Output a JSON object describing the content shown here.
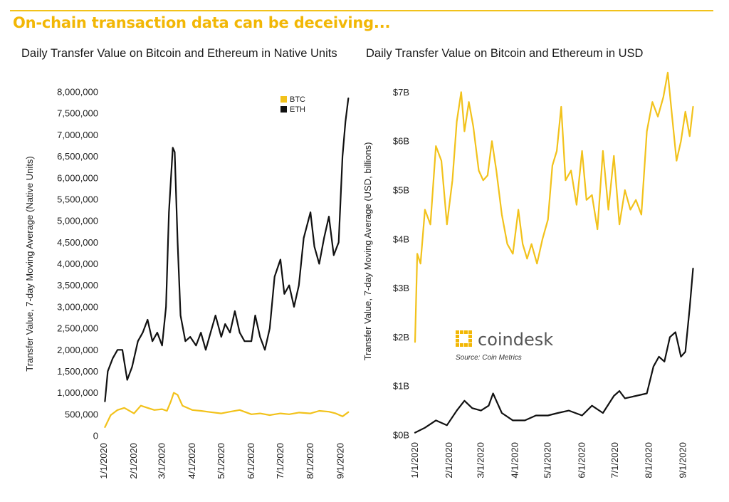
{
  "headline": "On-chain transaction data can be deceiving...",
  "colors": {
    "btc": "#f2c21b",
    "eth": "#111111",
    "accent": "#f2b705"
  },
  "branding": {
    "logo_text": "coindesk",
    "source": "Source: Coin Metrics",
    "logo_icon": "coindesk-logo-icon"
  },
  "chart_data": [
    {
      "type": "line",
      "title": "Daily Transfer Value on Bitcoin and Ethereum in Native Units",
      "ylabel": "Transfer Value, 7-day Moving Average (Native Units)",
      "xlabel": "",
      "ylim": [
        0,
        8000000
      ],
      "yticks": [
        0,
        500000,
        1000000,
        1500000,
        2000000,
        2500000,
        3000000,
        3500000,
        4000000,
        4500000,
        5000000,
        5500000,
        6000000,
        6500000,
        7000000,
        7500000,
        8000000
      ],
      "ytick_labels": [
        "0",
        "500,000",
        "1,000,000",
        "1,500,000",
        "2,000,000",
        "2,500,000",
        "3,000,000",
        "3,500,000",
        "4,000,000",
        "4,500,000",
        "5,000,000",
        "5,500,000",
        "6,000,000",
        "6,500,000",
        "7,000,000",
        "7,500,000",
        "8,000,000"
      ],
      "xticks": [
        "1/1/2020",
        "2/1/2020",
        "3/1/2020",
        "4/1/2020",
        "5/1/2020",
        "6/1/2020",
        "7/1/2020",
        "8/1/2020",
        "9/1/2020"
      ],
      "legend": {
        "placement": "top-right",
        "entries": [
          "BTC",
          "ETH"
        ]
      },
      "series": [
        {
          "name": "BTC",
          "color": "#f2c21b",
          "x": [
            "2020-01-02",
            "2020-01-08",
            "2020-01-15",
            "2020-01-22",
            "2020-02-01",
            "2020-02-08",
            "2020-02-15",
            "2020-02-22",
            "2020-03-01",
            "2020-03-06",
            "2020-03-10",
            "2020-03-13",
            "2020-03-17",
            "2020-03-22",
            "2020-04-01",
            "2020-04-10",
            "2020-04-20",
            "2020-05-01",
            "2020-05-10",
            "2020-05-20",
            "2020-06-01",
            "2020-06-10",
            "2020-06-20",
            "2020-07-01",
            "2020-07-10",
            "2020-07-20",
            "2020-08-01",
            "2020-08-10",
            "2020-08-20",
            "2020-08-27",
            "2020-09-03",
            "2020-09-09"
          ],
          "values": [
            200000,
            480000,
            600000,
            650000,
            520000,
            700000,
            650000,
            600000,
            620000,
            580000,
            800000,
            1000000,
            950000,
            700000,
            600000,
            580000,
            550000,
            520000,
            560000,
            600000,
            500000,
            520000,
            480000,
            520000,
            500000,
            540000,
            520000,
            580000,
            560000,
            520000,
            450000,
            550000
          ]
        },
        {
          "name": "ETH",
          "color": "#111111",
          "x": [
            "2020-01-02",
            "2020-01-05",
            "2020-01-10",
            "2020-01-15",
            "2020-01-20",
            "2020-01-25",
            "2020-01-30",
            "2020-02-05",
            "2020-02-10",
            "2020-02-15",
            "2020-02-20",
            "2020-02-25",
            "2020-03-01",
            "2020-03-05",
            "2020-03-08",
            "2020-03-12",
            "2020-03-14",
            "2020-03-17",
            "2020-03-20",
            "2020-03-25",
            "2020-03-30",
            "2020-04-05",
            "2020-04-10",
            "2020-04-15",
            "2020-04-20",
            "2020-04-25",
            "2020-05-01",
            "2020-05-05",
            "2020-05-10",
            "2020-05-15",
            "2020-05-20",
            "2020-05-25",
            "2020-06-01",
            "2020-06-05",
            "2020-06-10",
            "2020-06-15",
            "2020-06-20",
            "2020-06-25",
            "2020-07-01",
            "2020-07-05",
            "2020-07-10",
            "2020-07-15",
            "2020-07-20",
            "2020-07-25",
            "2020-08-01",
            "2020-08-05",
            "2020-08-10",
            "2020-08-15",
            "2020-08-20",
            "2020-08-25",
            "2020-08-30",
            "2020-09-03",
            "2020-09-06",
            "2020-09-09"
          ],
          "values": [
            800000,
            1500000,
            1800000,
            2000000,
            2000000,
            1300000,
            1600000,
            2200000,
            2400000,
            2700000,
            2200000,
            2400000,
            2100000,
            3000000,
            5200000,
            6700000,
            6600000,
            4500000,
            2800000,
            2200000,
            2300000,
            2100000,
            2400000,
            2000000,
            2400000,
            2800000,
            2300000,
            2600000,
            2400000,
            2900000,
            2400000,
            2200000,
            2200000,
            2800000,
            2300000,
            2000000,
            2500000,
            3700000,
            4100000,
            3300000,
            3500000,
            3000000,
            3500000,
            4600000,
            5200000,
            4400000,
            4000000,
            4600000,
            5100000,
            4200000,
            4500000,
            6500000,
            7300000,
            7850000
          ]
        }
      ]
    },
    {
      "type": "line",
      "title": "Daily Transfer Value on Bitcoin and Ethereum in USD",
      "ylabel": "Transfer Value, 7-day Moving Average (USD, billions)",
      "xlabel": "",
      "ylim": [
        0,
        7.5
      ],
      "yticks": [
        0,
        1,
        2,
        3,
        4,
        5,
        6,
        7
      ],
      "ytick_labels": [
        "$0B",
        "$1B",
        "$2B",
        "$3B",
        "$4B",
        "$5B",
        "$6B",
        "$7B"
      ],
      "xticks": [
        "1/1/2020",
        "2/1/2020",
        "3/1/2020",
        "4/1/2020",
        "5/1/2020",
        "6/1/2020",
        "7/1/2020",
        "8/1/2020",
        "9/1/2020"
      ],
      "series": [
        {
          "name": "BTC",
          "color": "#f2c21b",
          "x": [
            "2020-01-01",
            "2020-01-03",
            "2020-01-06",
            "2020-01-10",
            "2020-01-15",
            "2020-01-20",
            "2020-01-25",
            "2020-01-30",
            "2020-02-04",
            "2020-02-08",
            "2020-02-12",
            "2020-02-15",
            "2020-02-19",
            "2020-02-23",
            "2020-02-28",
            "2020-03-03",
            "2020-03-07",
            "2020-03-11",
            "2020-03-15",
            "2020-03-20",
            "2020-03-25",
            "2020-03-30",
            "2020-04-04",
            "2020-04-08",
            "2020-04-12",
            "2020-04-16",
            "2020-04-21",
            "2020-04-26",
            "2020-05-01",
            "2020-05-05",
            "2020-05-09",
            "2020-05-13",
            "2020-05-17",
            "2020-05-22",
            "2020-05-27",
            "2020-06-01",
            "2020-06-05",
            "2020-06-10",
            "2020-06-15",
            "2020-06-20",
            "2020-06-25",
            "2020-06-30",
            "2020-07-05",
            "2020-07-10",
            "2020-07-15",
            "2020-07-20",
            "2020-07-25",
            "2020-07-30",
            "2020-08-04",
            "2020-08-09",
            "2020-08-14",
            "2020-08-18",
            "2020-08-22",
            "2020-08-26",
            "2020-08-30",
            "2020-09-03",
            "2020-09-07",
            "2020-09-10"
          ],
          "values": [
            1.9,
            3.7,
            3.5,
            4.6,
            4.3,
            5.9,
            5.6,
            4.3,
            5.2,
            6.4,
            7.0,
            6.2,
            6.8,
            6.3,
            5.4,
            5.2,
            5.3,
            6.0,
            5.4,
            4.5,
            3.9,
            3.7,
            4.6,
            3.9,
            3.6,
            3.9,
            3.5,
            4.0,
            4.4,
            5.5,
            5.8,
            6.7,
            5.2,
            5.4,
            4.7,
            5.8,
            4.8,
            4.9,
            4.2,
            5.8,
            4.6,
            5.7,
            4.3,
            5.0,
            4.6,
            4.8,
            4.5,
            6.2,
            6.8,
            6.5,
            6.9,
            7.4,
            6.5,
            5.6,
            6.0,
            6.6,
            6.1,
            6.7
          ]
        },
        {
          "name": "ETH",
          "color": "#111111",
          "x": [
            "2020-01-01",
            "2020-01-10",
            "2020-01-20",
            "2020-01-30",
            "2020-02-08",
            "2020-02-15",
            "2020-02-22",
            "2020-03-01",
            "2020-03-08",
            "2020-03-12",
            "2020-03-15",
            "2020-03-20",
            "2020-03-30",
            "2020-04-10",
            "2020-04-20",
            "2020-05-01",
            "2020-05-10",
            "2020-05-20",
            "2020-06-01",
            "2020-06-10",
            "2020-06-20",
            "2020-06-30",
            "2020-07-05",
            "2020-07-10",
            "2020-07-20",
            "2020-07-30",
            "2020-08-05",
            "2020-08-10",
            "2020-08-15",
            "2020-08-20",
            "2020-08-25",
            "2020-08-30",
            "2020-09-03",
            "2020-09-07",
            "2020-09-10"
          ],
          "values": [
            0.05,
            0.15,
            0.3,
            0.2,
            0.5,
            0.7,
            0.55,
            0.5,
            0.6,
            0.85,
            0.7,
            0.45,
            0.3,
            0.3,
            0.4,
            0.4,
            0.45,
            0.5,
            0.4,
            0.6,
            0.45,
            0.8,
            0.9,
            0.75,
            0.8,
            0.85,
            1.4,
            1.6,
            1.5,
            2.0,
            2.1,
            1.6,
            1.7,
            2.6,
            3.4
          ]
        }
      ]
    }
  ]
}
